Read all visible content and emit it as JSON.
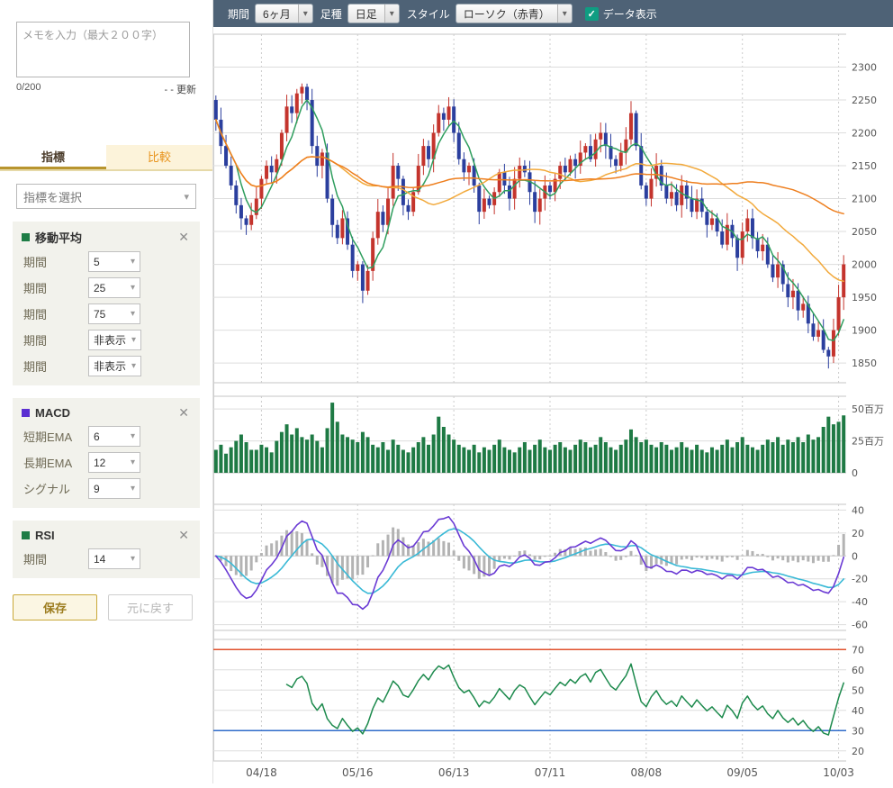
{
  "icons": {
    "chevron": "▾",
    "close": "✕",
    "check": "✓"
  },
  "sidebar": {
    "memo_placeholder": "メモを入力（最大２００字）",
    "memo_value": "",
    "char_count": "0/200",
    "update_label": "- - 更新",
    "tabs": [
      {
        "label": "指標"
      },
      {
        "label": "比較"
      }
    ],
    "indicator_select_placeholder": "指標を選択",
    "cards": [
      {
        "name": "移動平均",
        "color": "#1e7d46",
        "params": [
          {
            "label": "期間",
            "value": "5"
          },
          {
            "label": "期間",
            "value": "25"
          },
          {
            "label": "期間",
            "value": "75"
          },
          {
            "label": "期間",
            "value": "非表示"
          },
          {
            "label": "期間",
            "value": "非表示"
          }
        ]
      },
      {
        "name": "MACD",
        "color": "#5b2fd1",
        "params": [
          {
            "label": "短期EMA",
            "value": "6"
          },
          {
            "label": "長期EMA",
            "value": "12"
          },
          {
            "label": "シグナル",
            "value": "9"
          }
        ]
      },
      {
        "name": "RSI",
        "color": "#1e7d46",
        "params": [
          {
            "label": "期間",
            "value": "14"
          }
        ]
      }
    ],
    "save_label": "保存",
    "reset_label": "元に戻す"
  },
  "toolbar": {
    "period_label": "期間",
    "period_value": "6ヶ月",
    "bartype_label": "足種",
    "bartype_value": "日足",
    "style_label": "スタイル",
    "style_value": "ローソク（赤青）",
    "data_display_label": "データ表示",
    "data_display_checked": true
  },
  "chart_data": {
    "type": "candlestick",
    "candle_up_color": "#c4342d",
    "candle_down_color": "#2b3f9e",
    "x_tick_indices": [
      9,
      28,
      47,
      66,
      85,
      104,
      123
    ],
    "x_tick_labels": [
      "04/18",
      "05/16",
      "06/13",
      "07/11",
      "08/08",
      "09/05",
      "10/03"
    ],
    "price": {
      "first_open": 2250,
      "close": [
        2220,
        2180,
        2150,
        2120,
        2090,
        2070,
        2060,
        2075,
        2100,
        2130,
        2150,
        2140,
        2160,
        2200,
        2240,
        2230,
        2260,
        2270,
        2250,
        2180,
        2150,
        2170,
        2100,
        2060,
        2040,
        2070,
        2030,
        1990,
        2000,
        1960,
        1990,
        2040,
        2080,
        2060,
        2100,
        2150,
        2130,
        2090,
        2080,
        2110,
        2150,
        2180,
        2160,
        2200,
        2230,
        2220,
        2240,
        2200,
        2160,
        2140,
        2150,
        2120,
        2080,
        2100,
        2090,
        2110,
        2140,
        2120,
        2100,
        2130,
        2150,
        2140,
        2110,
        2080,
        2100,
        2120,
        2110,
        2130,
        2150,
        2140,
        2160,
        2150,
        2170,
        2180,
        2160,
        2190,
        2200,
        2180,
        2160,
        2150,
        2170,
        2190,
        2230,
        2180,
        2120,
        2100,
        2130,
        2150,
        2120,
        2100,
        2110,
        2090,
        2120,
        2100,
        2080,
        2100,
        2080,
        2060,
        2070,
        2050,
        2030,
        2060,
        2040,
        2010,
        2050,
        2070,
        2040,
        2020,
        2030,
        2000,
        1980,
        2000,
        1970,
        1950,
        1960,
        1930,
        1940,
        1910,
        1890,
        1900,
        1870,
        1860,
        1900,
        1950,
        2000
      ],
      "ylim": [
        1820,
        2350
      ],
      "yticks": [
        2300,
        2250,
        2200,
        2150,
        2100,
        2050,
        2000,
        1950,
        1900,
        1850
      ]
    },
    "volume": {
      "unit": "百万",
      "values": [
        18,
        22,
        15,
        20,
        25,
        30,
        24,
        18,
        18,
        22,
        20,
        16,
        25,
        32,
        38,
        30,
        35,
        28,
        26,
        30,
        25,
        20,
        35,
        55,
        40,
        30,
        28,
        26,
        24,
        32,
        28,
        22,
        20,
        24,
        18,
        26,
        22,
        18,
        16,
        20,
        24,
        28,
        22,
        30,
        44,
        36,
        30,
        26,
        22,
        20,
        18,
        22,
        16,
        20,
        18,
        22,
        26,
        20,
        18,
        16,
        20,
        24,
        18,
        22,
        26,
        20,
        18,
        22,
        24,
        20,
        18,
        22,
        26,
        24,
        20,
        22,
        28,
        24,
        20,
        18,
        22,
        26,
        34,
        28,
        24,
        26,
        22,
        20,
        24,
        22,
        18,
        20,
        24,
        20,
        18,
        22,
        18,
        16,
        20,
        18,
        22,
        26,
        20,
        24,
        28,
        22,
        20,
        18,
        22,
        26,
        24,
        28,
        22,
        26,
        24,
        28,
        24,
        30,
        26,
        28,
        36,
        44,
        38,
        40,
        45
      ],
      "ylim": [
        0,
        60
      ],
      "yticks": [
        {
          "v": 50,
          "label": "50百万"
        },
        {
          "v": 25,
          "label": "25百万"
        },
        {
          "v": 0,
          "label": "0"
        }
      ],
      "color": "#1e7a44"
    },
    "indicators": {
      "sma": {
        "periods": [
          5,
          25,
          75
        ],
        "colors": [
          "#2f9e5e",
          "#f2a93b",
          "#ee7f1f"
        ]
      },
      "macd": {
        "fast": 6,
        "slow": 12,
        "signal": 9,
        "ylim": [
          -65,
          45
        ],
        "yticks": [
          40,
          20,
          0,
          -20,
          -40,
          -60
        ],
        "macd_color": "#6a3ad4",
        "signal_color": "#39b9d6",
        "hist_color": "#b3b3b3"
      },
      "rsi": {
        "period": 14,
        "ylim": [
          15,
          75
        ],
        "yticks": [
          70,
          60,
          50,
          40,
          30,
          20
        ],
        "color": "#1d8a4d",
        "upper": 70,
        "lower": 30,
        "upper_color": "#e0512c",
        "lower_color": "#2f6bca"
      }
    }
  }
}
